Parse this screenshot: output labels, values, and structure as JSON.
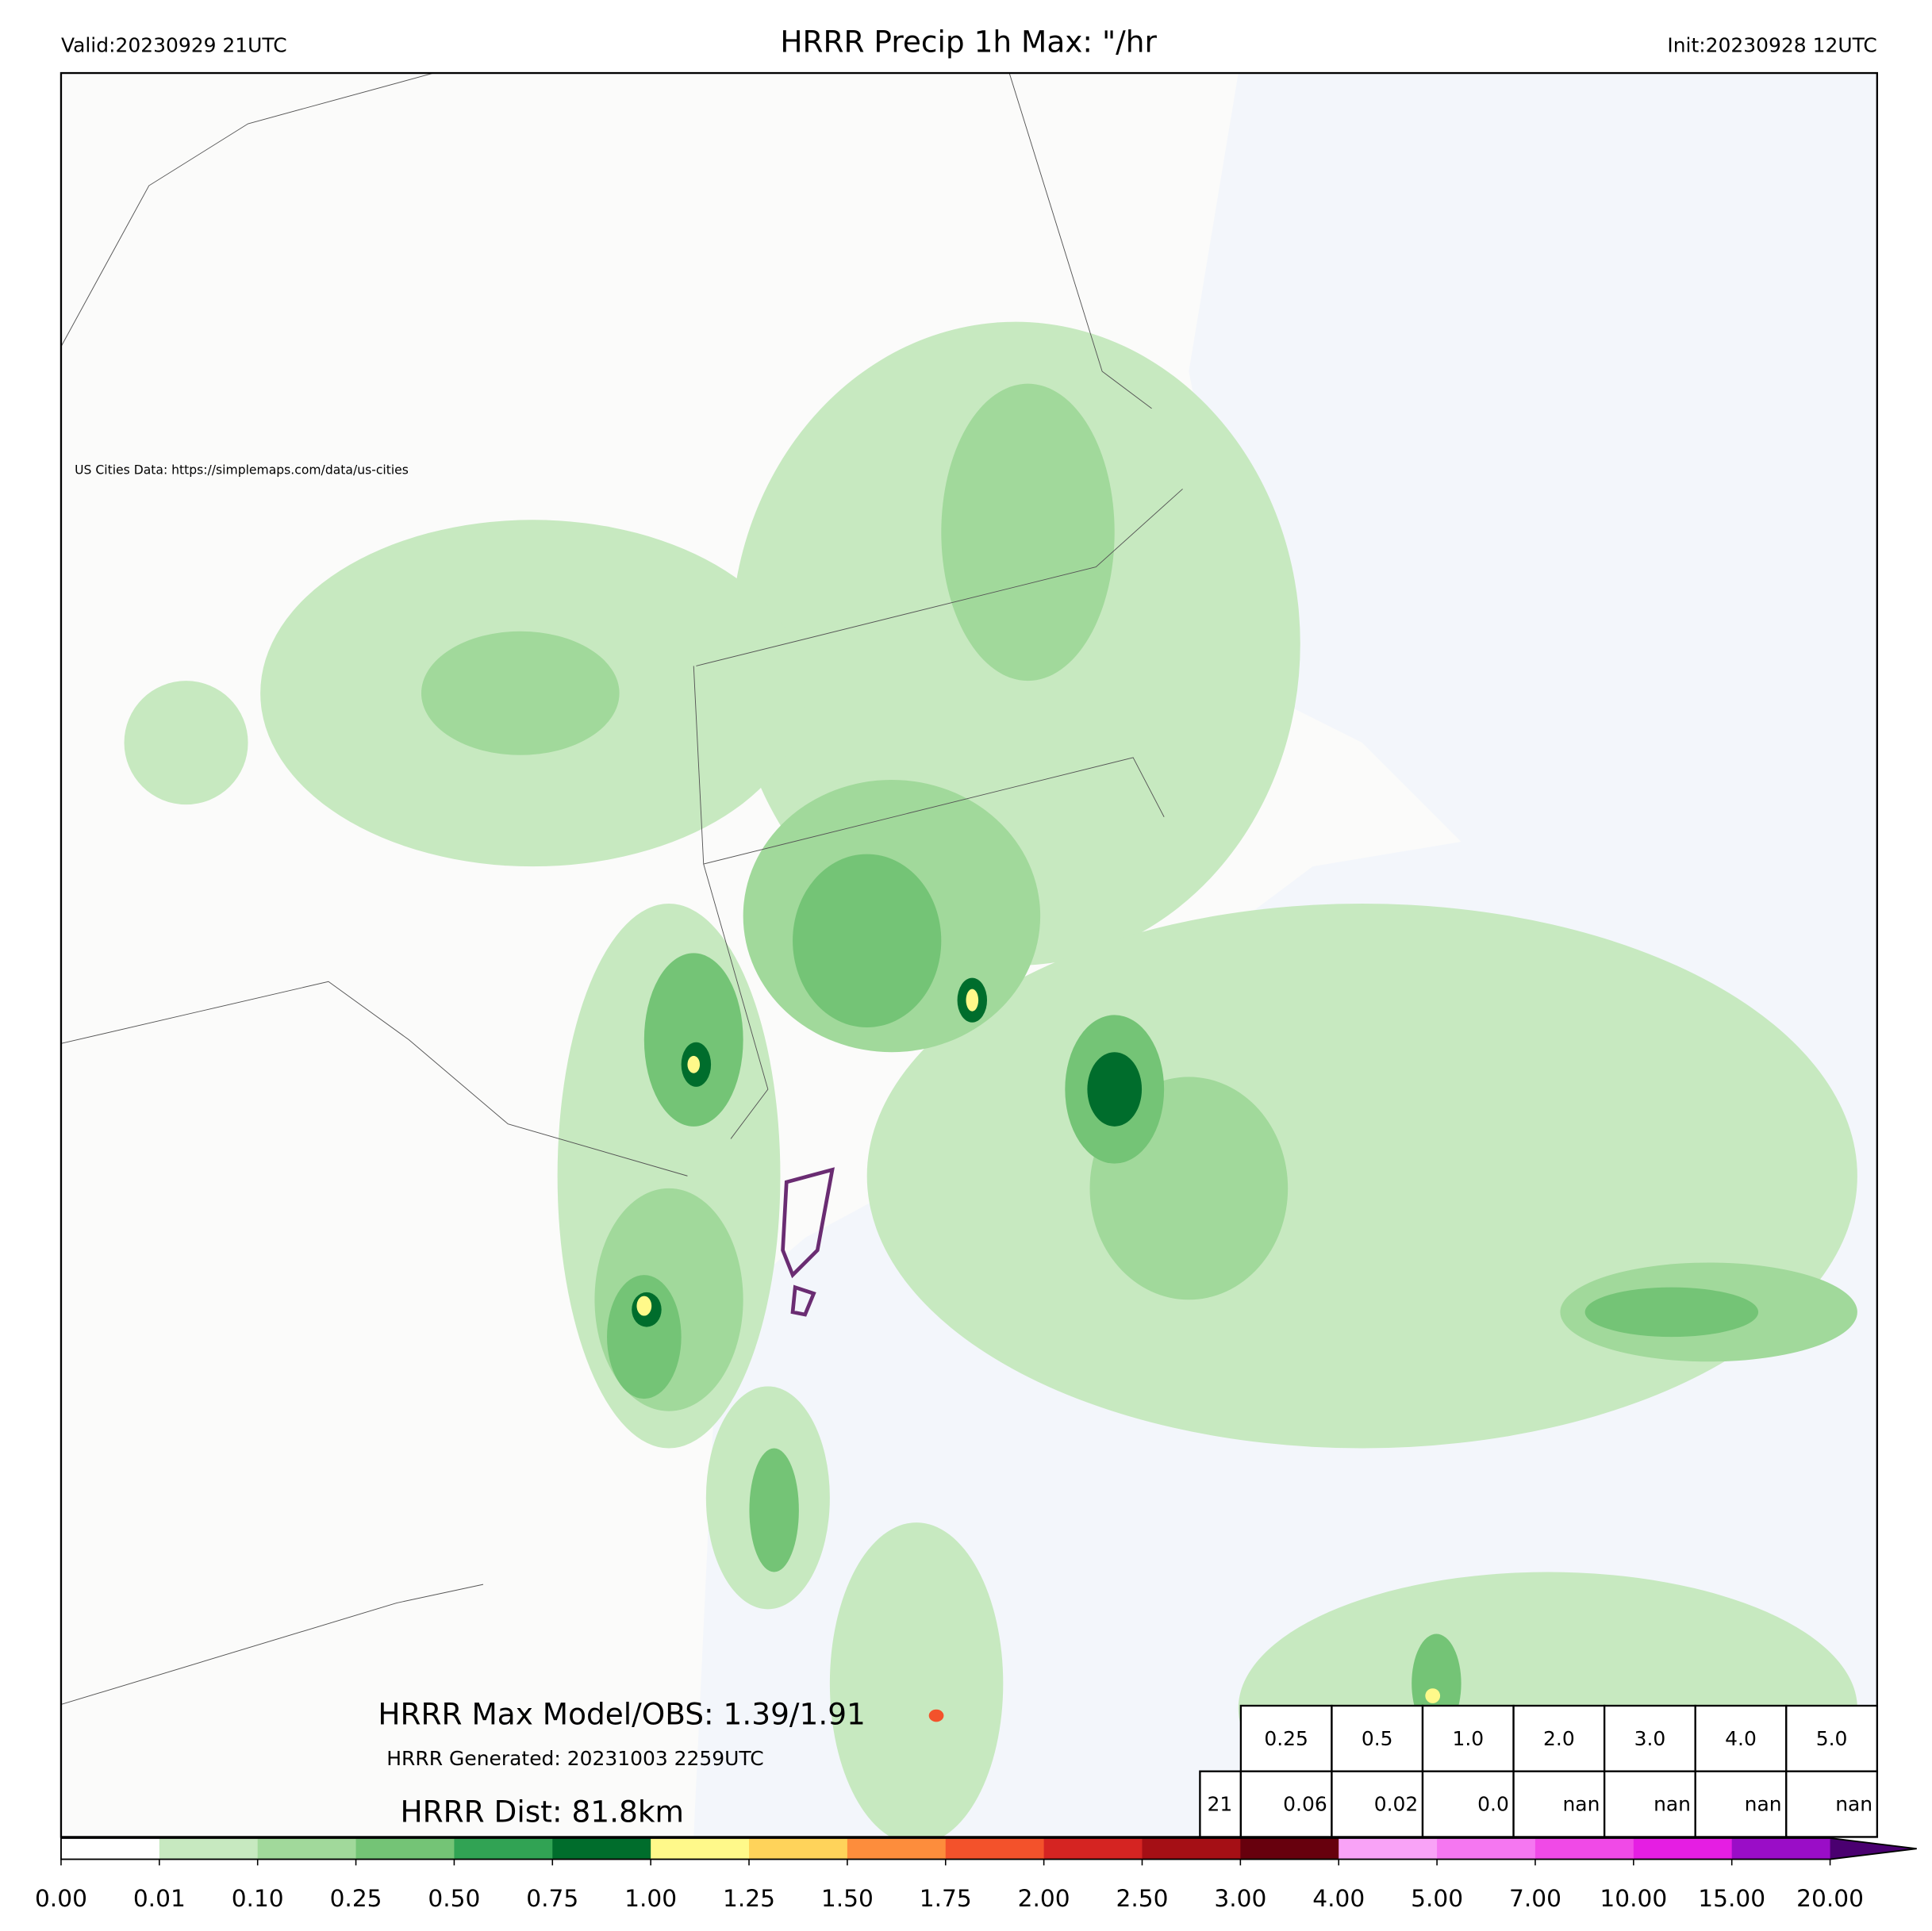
{
  "header": {
    "valid": "Valid:20230929 21UTC",
    "title": "HRRR Precip 1h Max: \"/hr",
    "init": "Init:20230928 12UTC"
  },
  "map": {
    "credit": "US Cities Data: https://simplemaps.com/data/us-cities",
    "max_text": "HRRR Max Model/OBS: 1.39/1.91",
    "generated": "HRRR Generated: 20231003 2259UTC",
    "dist": "HRRR Dist: 81.8km"
  },
  "table": {
    "header": [
      "0.25",
      "0.5",
      "1.0",
      "2.0",
      "3.0",
      "4.0",
      "5.0"
    ],
    "row_label": "21",
    "row": [
      "0.06",
      "0.02",
      "0.0",
      "nan",
      "nan",
      "nan",
      "nan"
    ]
  },
  "colorbar": {
    "labels": [
      "0.00",
      "0.01",
      "0.10",
      "0.25",
      "0.50",
      "0.75",
      "1.00",
      "1.25",
      "1.50",
      "1.75",
      "2.00",
      "2.50",
      "3.00",
      "4.00",
      "5.00",
      "7.00",
      "10.00",
      "15.00",
      "20.00"
    ],
    "colors": [
      "#ffffff",
      "#c7e9c0",
      "#a1d99b",
      "#74c476",
      "#31a354",
      "#006d2c",
      "#fff98a",
      "#ffd35a",
      "#fd8d3c",
      "#f3522b",
      "#d52422",
      "#a50f15",
      "#67000d",
      "#f9a3f7",
      "#f577f1",
      "#f04ae7",
      "#e51ee3",
      "#9a0dc7"
    ],
    "extend_color": "#4a0070"
  }
}
